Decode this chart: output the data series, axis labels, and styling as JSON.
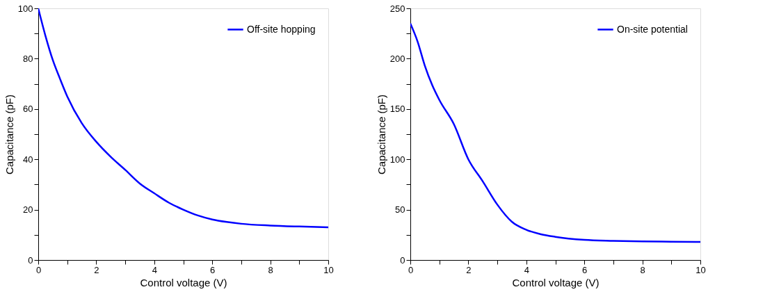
{
  "chart_data": [
    {
      "type": "line",
      "xlabel": "Control voltage (V)",
      "ylabel": "Capacitance (pF)",
      "xlim": [
        0,
        10
      ],
      "ylim": [
        0,
        100
      ],
      "xticks": [
        0,
        {
          "value": 1,
          "label": null
        },
        2,
        {
          "value": 3,
          "label": null
        },
        4,
        {
          "value": 5,
          "label": null
        },
        6,
        {
          "value": 7,
          "label": null
        },
        8,
        {
          "value": 9,
          "label": null
        },
        10
      ],
      "yticks": [
        0,
        {
          "value": 10,
          "label": null
        },
        20,
        {
          "value": 30,
          "label": null
        },
        40,
        {
          "value": 50,
          "label": null
        },
        60,
        {
          "value": 70,
          "label": null
        },
        80,
        {
          "value": 90,
          "label": null
        },
        100
      ],
      "x": [
        0,
        0.25,
        0.5,
        0.75,
        1,
        1.5,
        2,
        2.5,
        3,
        3.5,
        4,
        4.5,
        5,
        5.5,
        6,
        6.5,
        7,
        8,
        9,
        10
      ],
      "series": [
        {
          "name": "Off-site hopping",
          "color": "#0000ff",
          "values": [
            100,
            89,
            79.5,
            72,
            65,
            54.4,
            47,
            41,
            35.8,
            30.4,
            26.5,
            22.8,
            20,
            17.7,
            16.1,
            15.1,
            14.4,
            13.7,
            13.3,
            13
          ]
        }
      ],
      "legend": "top right",
      "grid": false,
      "marker": "none",
      "line_style": "solid"
    },
    {
      "type": "line",
      "xlabel": "Control voltage (V)",
      "ylabel": "Capacitance (pF)",
      "xlim": [
        0,
        10
      ],
      "ylim": [
        0,
        250
      ],
      "xticks": [
        0,
        {
          "value": 1,
          "label": null
        },
        2,
        {
          "value": 3,
          "label": null
        },
        4,
        {
          "value": 5,
          "label": null
        },
        6,
        {
          "value": 7,
          "label": null
        },
        8,
        {
          "value": 9,
          "label": null
        },
        10
      ],
      "yticks": [
        0,
        {
          "value": 25,
          "label": null
        },
        50,
        {
          "value": 75,
          "label": null
        },
        100,
        {
          "value": 125,
          "label": null
        },
        150,
        {
          "value": 175,
          "label": null
        },
        200,
        {
          "value": 225,
          "label": null
        },
        250
      ],
      "x": [
        0,
        0.25,
        0.5,
        0.75,
        1,
        1.5,
        2,
        2.5,
        3,
        3.5,
        4,
        4.5,
        5,
        6,
        7,
        8,
        9,
        10
      ],
      "series": [
        {
          "name": "On-site potential",
          "color": "#0000ff",
          "values": [
            235,
            217,
            193,
            174,
            159,
            135,
            100,
            78,
            55,
            38,
            30,
            25.6,
            23,
            20,
            19,
            18.4,
            18.2,
            18
          ]
        }
      ],
      "legend": "top right",
      "grid": false,
      "marker": "none",
      "line_style": "solid"
    }
  ]
}
